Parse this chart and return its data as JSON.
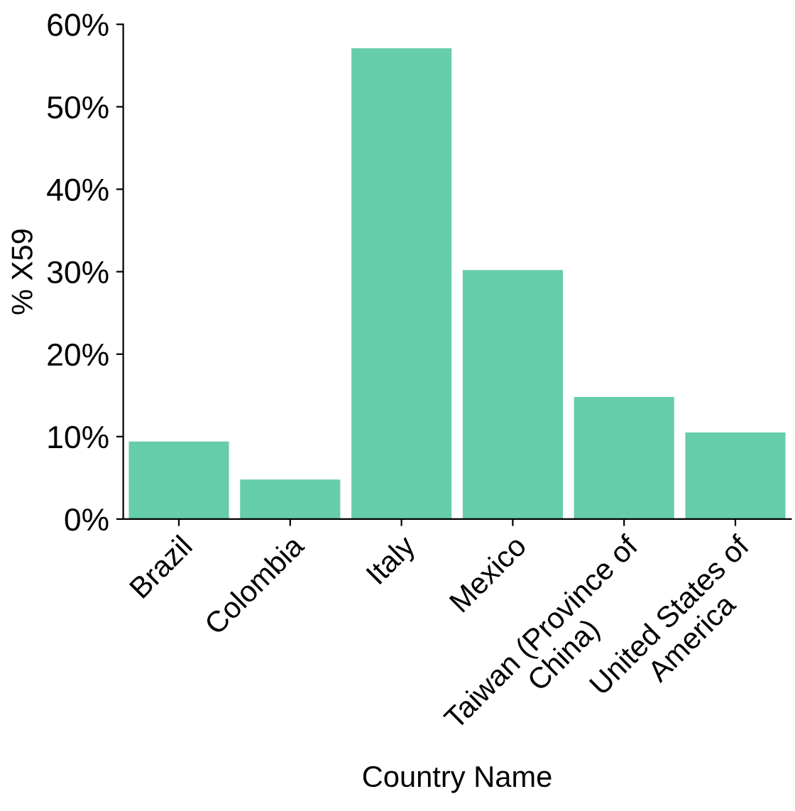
{
  "chart_data": {
    "type": "bar",
    "xlabel": "Country Name",
    "ylabel": "% X59",
    "categories": [
      "Brazil",
      "Colombia",
      "Italy",
      "Mexico",
      "Taiwan (Province of\nChina)",
      "United States of\nAmerica"
    ],
    "values": [
      9.4,
      4.8,
      57.1,
      30.2,
      14.8,
      10.5
    ],
    "color": "#66cdaa",
    "ylim": [
      0,
      60
    ],
    "yticks": [
      {
        "value": 0,
        "label": "0%"
      },
      {
        "value": 10,
        "label": "10%"
      },
      {
        "value": 20,
        "label": "20%"
      },
      {
        "value": 30,
        "label": "30%"
      },
      {
        "value": 40,
        "label": "40%"
      },
      {
        "value": 50,
        "label": "50%"
      },
      {
        "value": 60,
        "label": "60%"
      }
    ],
    "grid": false,
    "legend": false
  }
}
